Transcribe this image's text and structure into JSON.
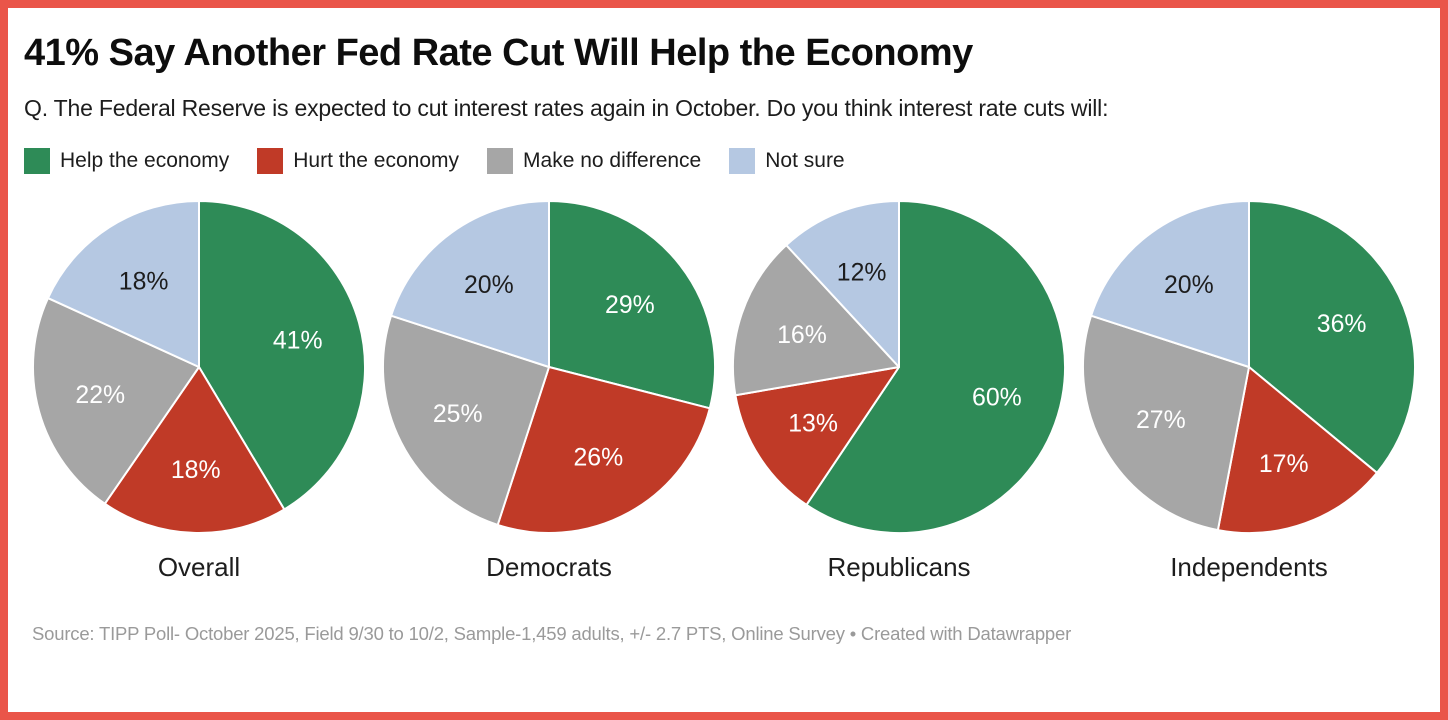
{
  "frame": {
    "border_color": "#ea5549",
    "background": "#ffffff"
  },
  "header": {
    "title": "41% Say Another Fed Rate Cut Will Help the Economy",
    "subtitle": "Q. The Federal Reserve is expected to cut interest rates again in October. Do you think interest rate cuts will:"
  },
  "legend": {
    "items": [
      {
        "label": "Help the economy",
        "color": "#2e8b57"
      },
      {
        "label": "Hurt the economy",
        "color": "#c03a27"
      },
      {
        "label": "Make no difference",
        "color": "#a6a6a6"
      },
      {
        "label": "Not sure",
        "color": "#b5c8e2"
      }
    ]
  },
  "chart_data": {
    "type": "pie",
    "title": "41% Say Another Fed Rate Cut Will Help the Economy",
    "categories": [
      "Help the economy",
      "Hurt the economy",
      "Make no difference",
      "Not sure"
    ],
    "colors": [
      "#2e8b57",
      "#c03a27",
      "#a6a6a6",
      "#b5c8e2"
    ],
    "label_colors": [
      "#ffffff",
      "#ffffff",
      "#ffffff",
      "#1d1d1d"
    ],
    "start_angle_deg": 0,
    "direction": "clockwise",
    "value_format": "{v}%",
    "groups": [
      {
        "label": "Overall",
        "values": [
          41,
          18,
          22,
          18
        ]
      },
      {
        "label": "Democrats",
        "values": [
          29,
          26,
          25,
          20
        ]
      },
      {
        "label": "Republicans",
        "values": [
          60,
          13,
          16,
          12
        ]
      },
      {
        "label": "Independents",
        "values": [
          36,
          17,
          27,
          20
        ]
      }
    ]
  },
  "footer": {
    "source": "Source: TIPP Poll- October 2025, Field 9/30 to 10/2, Sample-1,459 adults, +/- 2.7 PTS, Online Survey • Created with Datawrapper"
  }
}
